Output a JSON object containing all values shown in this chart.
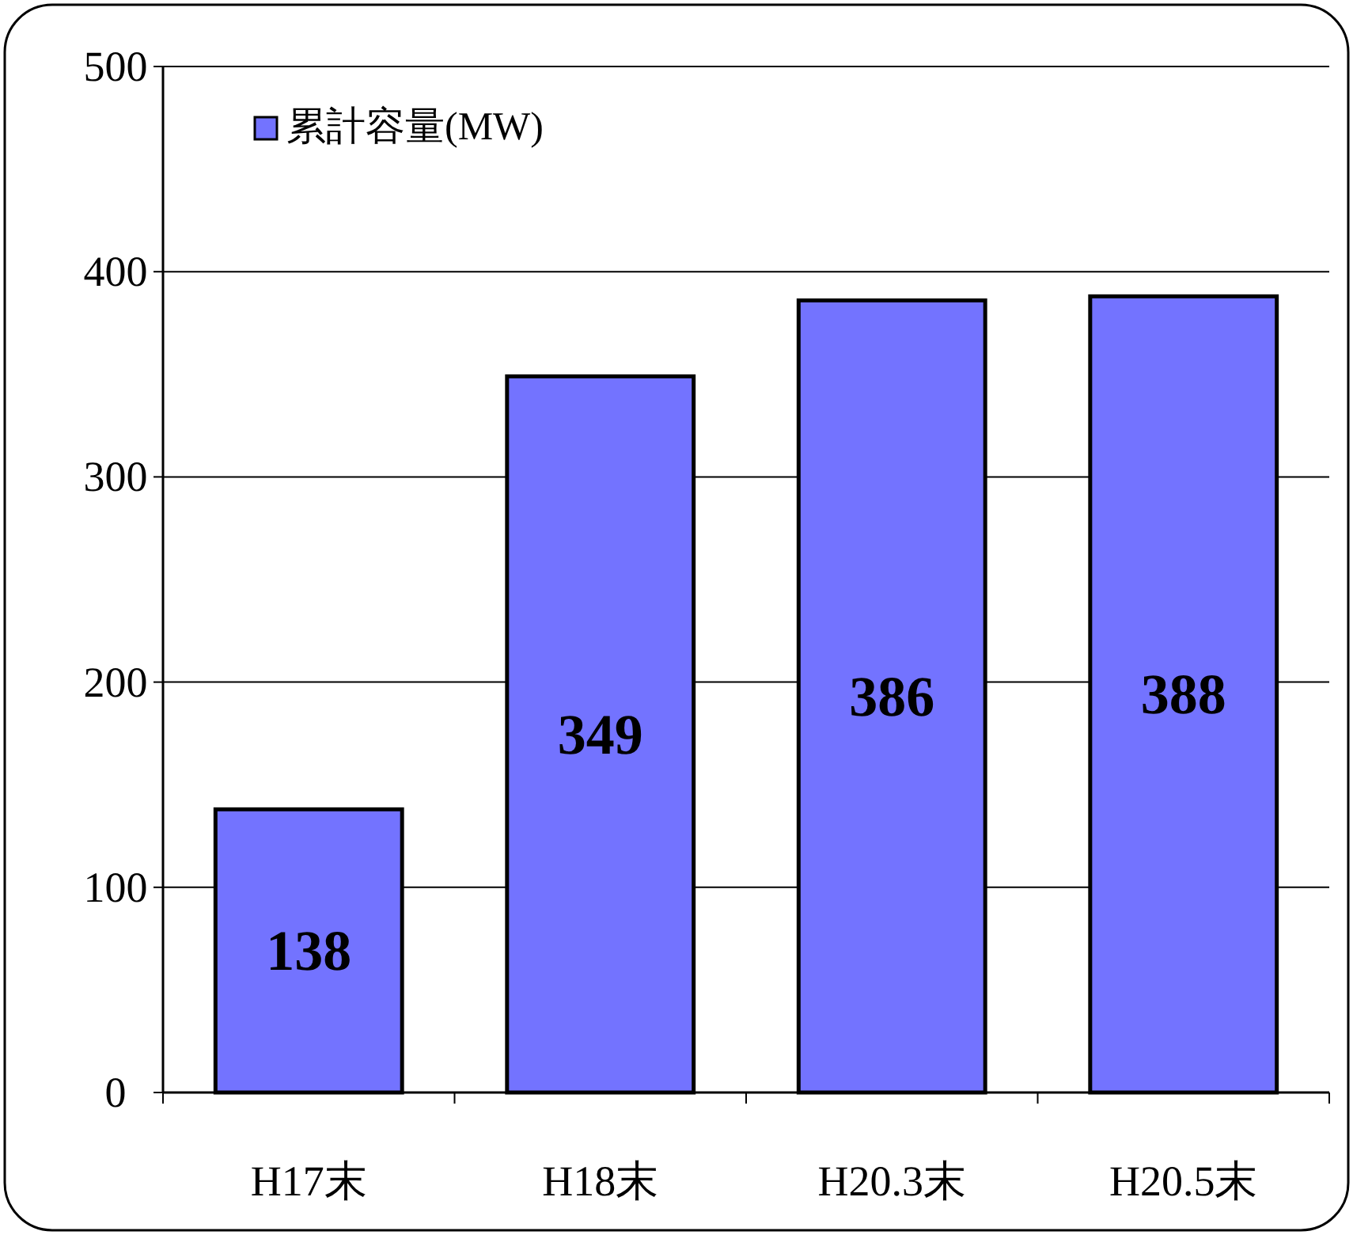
{
  "chart_data": {
    "type": "bar",
    "categories": [
      "H17末",
      "H18末",
      "H20.3末",
      "H20.5末"
    ],
    "series": [
      {
        "name": "累計容量(MW)",
        "color": "#7373ff",
        "values": [
          138,
          349,
          386,
          388
        ]
      }
    ],
    "ylim": [
      0,
      500
    ],
    "yticks": [
      0,
      100,
      200,
      300,
      400,
      500
    ],
    "grid": "y",
    "legend": "top left",
    "data_labels": true
  }
}
